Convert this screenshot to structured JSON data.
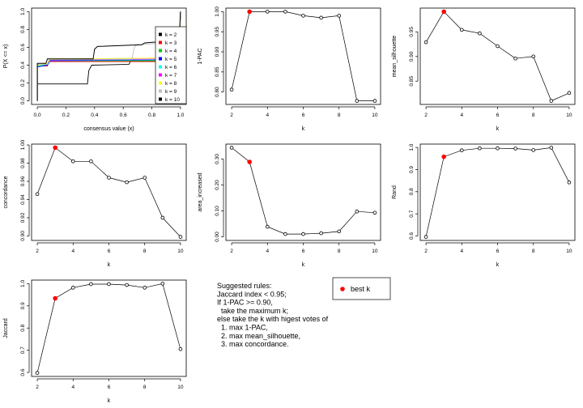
{
  "chart_data": [
    {
      "type": "line",
      "xlabel": "consensus value (x)",
      "ylabel": "P(X <= x)",
      "xlim": [
        0,
        1
      ],
      "ylim": [
        0,
        1
      ],
      "xticks": [
        "0.0",
        "0.2",
        "0.4",
        "0.6",
        "0.8",
        "1.0"
      ],
      "yticks": [
        "0.0",
        "0.2",
        "0.4",
        "0.6",
        "0.8",
        "1.0"
      ],
      "legend_position": "right",
      "series": [
        {
          "name": "k = 2",
          "color": "#000000",
          "points": [
            [
              0,
              0
            ],
            [
              0,
              0.19
            ],
            [
              0.35,
              0.19
            ],
            [
              0.36,
              0.34
            ],
            [
              0.38,
              0.4
            ],
            [
              0.64,
              0.41
            ],
            [
              0.65,
              0.44
            ],
            [
              0.99,
              0.44
            ],
            [
              1,
              1
            ]
          ]
        },
        {
          "name": "k = 3",
          "color": "#ff0000",
          "points": [
            [
              0,
              0
            ],
            [
              0,
              0.39
            ],
            [
              0.07,
              0.39
            ],
            [
              0.08,
              0.44
            ],
            [
              0.99,
              0.44
            ],
            [
              1,
              1
            ]
          ]
        },
        {
          "name": "k = 4",
          "color": "#00cd00",
          "points": [
            [
              0,
              0
            ],
            [
              0,
              0.39
            ],
            [
              0.07,
              0.4
            ],
            [
              0.08,
              0.45
            ],
            [
              0.99,
              0.45
            ],
            [
              1,
              1
            ]
          ]
        },
        {
          "name": "k = 5",
          "color": "#0000ff",
          "points": [
            [
              0,
              0
            ],
            [
              0,
              0.38
            ],
            [
              0.07,
              0.4
            ],
            [
              0.09,
              0.45
            ],
            [
              0.99,
              0.46
            ],
            [
              1,
              1
            ]
          ]
        },
        {
          "name": "k = 6",
          "color": "#00ffff",
          "points": [
            [
              0,
              0
            ],
            [
              0,
              0.39
            ],
            [
              0.07,
              0.41
            ],
            [
              0.09,
              0.46
            ],
            [
              0.99,
              0.46
            ],
            [
              1,
              1
            ]
          ]
        },
        {
          "name": "k = 7",
          "color": "#ff00ff",
          "points": [
            [
              0,
              0
            ],
            [
              0,
              0.4
            ],
            [
              0.07,
              0.42
            ],
            [
              0.09,
              0.46
            ],
            [
              0.99,
              0.47
            ],
            [
              1,
              1
            ]
          ]
        },
        {
          "name": "k = 8",
          "color": "#ffff00",
          "points": [
            [
              0,
              0
            ],
            [
              0,
              0.4
            ],
            [
              0.07,
              0.42
            ],
            [
              0.09,
              0.47
            ],
            [
              0.99,
              0.48
            ],
            [
              1,
              1
            ]
          ]
        },
        {
          "name": "k = 9",
          "color": "#bebebe",
          "points": [
            [
              0,
              0
            ],
            [
              0,
              0.41
            ],
            [
              0.07,
              0.41
            ],
            [
              0.08,
              0.46
            ],
            [
              0.66,
              0.47
            ],
            [
              0.68,
              0.61
            ],
            [
              0.7,
              0.63
            ],
            [
              0.99,
              0.66
            ],
            [
              1,
              1
            ]
          ]
        },
        {
          "name": "k = 10",
          "color": "#000000",
          "points": [
            [
              0,
              0
            ],
            [
              0,
              0.42
            ],
            [
              0.06,
              0.42
            ],
            [
              0.07,
              0.47
            ],
            [
              0.39,
              0.47
            ],
            [
              0.4,
              0.58
            ],
            [
              0.42,
              0.61
            ],
            [
              0.73,
              0.63
            ],
            [
              0.75,
              0.65
            ],
            [
              0.99,
              0.68
            ],
            [
              1,
              1
            ]
          ]
        }
      ]
    },
    {
      "type": "line",
      "xlabel": "k",
      "ylabel": "1-PAC",
      "x": [
        2,
        3,
        4,
        5,
        6,
        7,
        8,
        9,
        10
      ],
      "values": [
        0.806,
        1.0,
        1.0,
        1.0,
        0.99,
        0.985,
        0.99,
        0.778,
        0.778
      ],
      "best_k": 3,
      "ylim": [
        0.778,
        1.0
      ],
      "yticks": [
        0.8,
        0.85,
        0.9,
        0.95,
        1.0
      ],
      "ytick_labels": [
        "0.80",
        "0.85",
        "0.90",
        "0.95",
        "1.00"
      ]
    },
    {
      "type": "line",
      "xlabel": "k",
      "ylabel": "mean_silhouette",
      "x": [
        2,
        3,
        4,
        5,
        6,
        7,
        8,
        9,
        10
      ],
      "values": [
        0.929,
        0.991,
        0.954,
        0.947,
        0.921,
        0.896,
        0.9,
        0.81,
        0.826
      ],
      "best_k": 3,
      "ylim": [
        0.81,
        0.991
      ],
      "yticks": [
        0.85,
        0.9,
        0.95
      ],
      "ytick_labels": [
        "0.85",
        "0.90",
        "0.95"
      ]
    },
    {
      "type": "line",
      "xlabel": "k",
      "ylabel": "concordance",
      "x": [
        2,
        3,
        4,
        5,
        6,
        7,
        8,
        9,
        10
      ],
      "values": [
        0.946,
        0.997,
        0.982,
        0.982,
        0.964,
        0.959,
        0.964,
        0.92,
        0.899
      ],
      "best_k": 3,
      "ylim": [
        0.899,
        0.997
      ],
      "yticks": [
        0.9,
        0.92,
        0.94,
        0.96,
        0.98,
        1.0
      ],
      "ytick_labels": [
        "0.90",
        "0.92",
        "0.94",
        "0.96",
        "0.98",
        "1.00"
      ]
    },
    {
      "type": "line",
      "xlabel": "k",
      "ylabel": "area_increased",
      "x": [
        2,
        3,
        4,
        5,
        6,
        7,
        8,
        9,
        10
      ],
      "values": [
        0.344,
        0.289,
        0.039,
        0.011,
        0.011,
        0.014,
        0.021,
        0.098,
        0.093
      ],
      "best_k": 3,
      "ylim": [
        0.0,
        0.344
      ],
      "yticks": [
        0.0,
        0.1,
        0.2,
        0.3
      ],
      "ytick_labels": [
        "0.00",
        "0.10",
        "0.20",
        "0.30"
      ]
    },
    {
      "type": "line",
      "xlabel": "k",
      "ylabel": "Rand",
      "x": [
        2,
        3,
        4,
        5,
        6,
        7,
        8,
        9,
        10
      ],
      "values": [
        0.596,
        0.958,
        0.987,
        0.996,
        0.996,
        0.995,
        0.988,
        0.999,
        0.842
      ],
      "best_k": 3,
      "ylim": [
        0.596,
        0.999
      ],
      "yticks": [
        0.6,
        0.7,
        0.8,
        0.9,
        1.0
      ],
      "ytick_labels": [
        "0.6",
        "0.7",
        "0.8",
        "0.9",
        "1.0"
      ]
    },
    {
      "type": "line",
      "xlabel": "k",
      "ylabel": "Jaccard",
      "x": [
        2,
        3,
        4,
        5,
        6,
        7,
        8,
        9,
        10
      ],
      "values": [
        0.598,
        0.934,
        0.982,
        0.998,
        0.998,
        0.994,
        0.982,
        1.0,
        0.705
      ],
      "best_k": 3,
      "ylim": [
        0.598,
        1.0
      ],
      "yticks": [
        0.6,
        0.7,
        0.8,
        0.9,
        1.0
      ],
      "ytick_labels": [
        "0.6",
        "0.7",
        "0.8",
        "0.9",
        "1.0"
      ]
    }
  ],
  "xticks_k": [
    "2",
    "4",
    "6",
    "8",
    "10"
  ],
  "rules": [
    "Suggested rules:",
    "Jaccard index < 0.95;",
    "If 1-PAC >= 0.90,",
    "  take the maximum k;",
    "else take the k with higest votes of",
    "  1. max 1-PAC,",
    "  2. max mean_silhouette,",
    "  3. max concordance."
  ],
  "best_k_legend": {
    "label": "best k",
    "color": "#ff0000"
  }
}
